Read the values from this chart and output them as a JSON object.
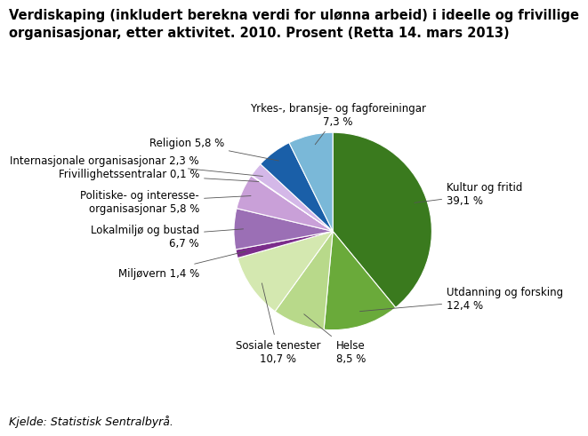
{
  "title_line1": "Verdiskaping (inkludert berekna verdi for ulønna arbeid) i ideelle og frivillige",
  "title_line2": "organisasjonar, etter aktivitet. 2010. Prosent (Retta 14. mars 2013)",
  "footer": "Kjelde: Statistisk Sentralbyrå.",
  "slices": [
    {
      "label": "Kultur og fritid\n39,1 %",
      "value": 39.1,
      "color": "#3a7a1e"
    },
    {
      "label": "Utdanning og forsking\n12,4 %",
      "value": 12.4,
      "color": "#6aaa3a"
    },
    {
      "label": "Helse\n8,5 %",
      "value": 8.5,
      "color": "#b8d98a"
    },
    {
      "label": "Sosiale tenester\n10,7 %",
      "value": 10.7,
      "color": "#d4e8b0"
    },
    {
      "label": "Miljøvern 1,4 %",
      "value": 1.4,
      "color": "#7b2d8b"
    },
    {
      "label": "Lokalmiljø og bustad\n6,7 %",
      "value": 6.7,
      "color": "#9b6fb5"
    },
    {
      "label": "Politiske- og interesse-\norganisasjonar 5,8 %",
      "value": 5.8,
      "color": "#c9a0d8"
    },
    {
      "label": "Frivillighetssentralar 0,1 %",
      "value": 0.1,
      "color": "#e8c8f0"
    },
    {
      "label": "Internasjonale organisasjonar 2,3 %",
      "value": 2.3,
      "color": "#d4b8e8"
    },
    {
      "label": "Religion 5,8 %",
      "value": 5.8,
      "color": "#1a5fa8"
    },
    {
      "label": "Yrkes-, bransje- og fagforeiningar\n7,3 %",
      "value": 7.3,
      "color": "#7ab8d8"
    }
  ],
  "background_color": "#ffffff",
  "title_fontsize": 10.5,
  "label_fontsize": 8.5,
  "footer_fontsize": 9
}
